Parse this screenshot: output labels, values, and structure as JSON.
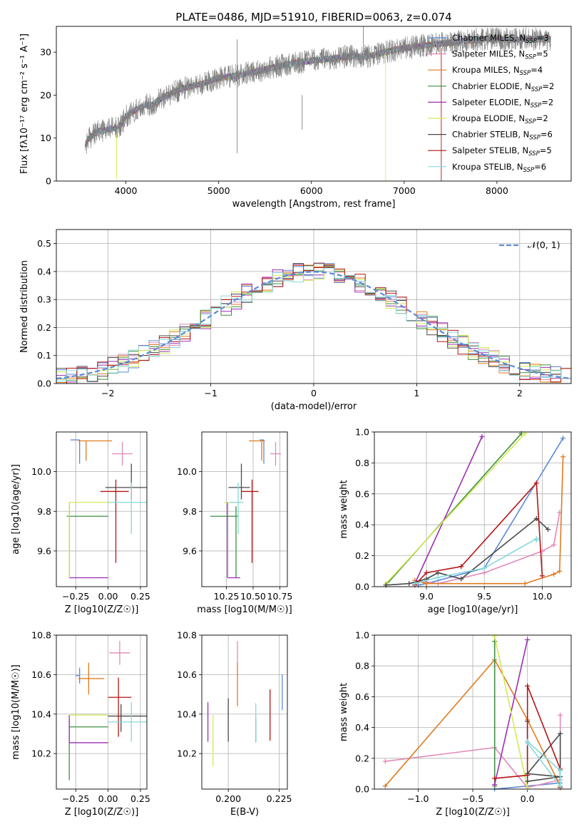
{
  "figure_title": "PLATE=0486, MJD=51910, FIBERID=0063, z=0.074",
  "colors": {
    "chabrier_miles": "#5b8ad7",
    "salpeter_miles": "#e389b9",
    "kroupa_miles": "#e07b20",
    "chabrier_elodie": "#3f8f3f",
    "salpeter_elodie": "#9a2fb0",
    "kroupa_elodie": "#d4ea55",
    "chabrier_stelib": "#4a4a4a",
    "salpeter_stelib": "#b51515",
    "kroupa_stelib": "#86d8da",
    "data_gray": "#7f7f7f"
  },
  "chart_data": [
    {
      "id": "spectrum",
      "type": "line",
      "title": "PLATE=0486, MJD=51910, FIBERID=0063, z=0.074",
      "xlabel": "wavelength [Angstrom, rest frame]",
      "ylabel": "Flux [fλ10⁻¹⁷ erg cm⁻² s⁻¹ A⁻¹]",
      "xlim": [
        3250,
        8800
      ],
      "ylim": [
        0,
        36
      ],
      "xticks": [
        "4000",
        "5000",
        "6000",
        "7000",
        "8000"
      ],
      "yticks": [
        "0",
        "10",
        "20",
        "30"
      ],
      "legend_position": "top-right",
      "legend": [
        "Chabrier MILES, N_SSP=3",
        "Salpeter MILES, N_SSP=5",
        "Kroupa MILES, N_SSP=4",
        "Chabrier ELODIE, N_SSP=2",
        "Salpeter ELODIE, N_SSP=2",
        "Kroupa ELODIE, N_SSP=2",
        "Chabrier STELIB, N_SSP=6",
        "Salpeter STELIB, N_SSP=5",
        "Kroupa STELIB, N_SSP=6"
      ],
      "continuum": [
        [
          3550,
          8
        ],
        [
          3600,
          10
        ],
        [
          3700,
          11.5
        ],
        [
          3800,
          12
        ],
        [
          3900,
          12.5
        ],
        [
          3950,
          13
        ],
        [
          4000,
          15
        ],
        [
          4100,
          16.5
        ],
        [
          4200,
          17.5
        ],
        [
          4300,
          18
        ],
        [
          4400,
          19.5
        ],
        [
          4500,
          20.5
        ],
        [
          4600,
          21.5
        ],
        [
          4800,
          22.5
        ],
        [
          5000,
          24
        ],
        [
          5200,
          24.5
        ],
        [
          5400,
          25.5
        ],
        [
          5600,
          26.5
        ],
        [
          5800,
          27.5
        ],
        [
          6000,
          28
        ],
        [
          6200,
          28.5
        ],
        [
          6400,
          29
        ],
        [
          6600,
          29
        ],
        [
          6800,
          30
        ],
        [
          7000,
          31
        ],
        [
          7200,
          31.5
        ],
        [
          7400,
          32
        ],
        [
          7600,
          32.5
        ],
        [
          7800,
          33
        ],
        [
          8000,
          33
        ],
        [
          8200,
          33
        ],
        [
          8400,
          33
        ],
        [
          8600,
          33
        ]
      ]
    },
    {
      "id": "residuals",
      "type": "line",
      "xlabel": "(data-model)/error",
      "ylabel": "Normed distribution",
      "xlim": [
        -2.5,
        2.5
      ],
      "ylim": [
        0,
        0.55
      ],
      "xticks": [
        "−2",
        "−1",
        "0",
        "1",
        "2"
      ],
      "yticks": [
        "0.0",
        "0.1",
        "0.2",
        "0.3",
        "0.4",
        "0.5"
      ],
      "legend_position": "top-right",
      "legend": [
        "𝒩(0, 1)"
      ],
      "bin_width": 0.1
    },
    {
      "id": "age_vs_Z",
      "type": "scatter",
      "xlabel": "Z [log10(Z/Z☉)]",
      "ylabel": "age  [log10(age/yr)]",
      "xlim": [
        -0.4,
        0.3
      ],
      "ylim": [
        9.42,
        10.2
      ],
      "xticks": [
        "−0.25",
        "0.00",
        "0.25"
      ],
      "yticks": [
        "9.6",
        "9.8",
        "10.0"
      ],
      "points": [
        {
          "x": -0.22,
          "xerr": [
            0.07,
            0
          ],
          "y": 10.16,
          "yerr": [
            0.12,
            0
          ],
          "c": "chabrier_miles"
        },
        {
          "x": 0.11,
          "xerr": [
            0.08,
            0.08
          ],
          "y": 10.09,
          "yerr": [
            0.06,
            0.06
          ],
          "c": "salpeter_miles"
        },
        {
          "x": -0.17,
          "xerr": [
            0.06,
            0.2
          ],
          "y": 10.155,
          "yerr": [
            0.1,
            0
          ],
          "c": "kroupa_miles"
        },
        {
          "x": -0.3,
          "xerr": [
            0.02,
            0.3
          ],
          "y": 9.775,
          "yerr": [
            0.31,
            0.05
          ],
          "c": "chabrier_elodie"
        },
        {
          "x": -0.3,
          "xerr": [
            0,
            0.3
          ],
          "y": 9.465,
          "yerr": [
            0,
            0.38
          ],
          "c": "salpeter_elodie"
        },
        {
          "x": -0.3,
          "xerr": [
            0,
            0.3
          ],
          "y": 9.845,
          "yerr": [
            0.38,
            0
          ],
          "c": "kroupa_elodie"
        },
        {
          "x": 0.18,
          "xerr": [
            0.2,
            0.12
          ],
          "y": 9.92,
          "yerr": [
            0.06,
            0.12
          ],
          "c": "chabrier_stelib"
        },
        {
          "x": 0.06,
          "xerr": [
            0.12,
            0.1
          ],
          "y": 9.9,
          "yerr": [
            0.36,
            0.06
          ],
          "c": "salpeter_stelib"
        },
        {
          "x": 0.18,
          "xerr": [
            0.18,
            0.12
          ],
          "y": 9.845,
          "yerr": [
            0.16,
            0.1
          ],
          "c": "kroupa_stelib"
        }
      ]
    },
    {
      "id": "age_vs_mass",
      "type": "scatter",
      "xlabel": "mass [log10(M/M☉)]",
      "ylabel": "",
      "xlim": [
        10.02,
        10.82
      ],
      "ylim": [
        9.42,
        10.2
      ],
      "xticks": [
        "10.25",
        "10.50",
        "10.75"
      ],
      "yticks": [
        "9.6",
        "9.8",
        "10.0"
      ],
      "points": [
        {
          "x": 10.6,
          "xerr": [
            0.04,
            0
          ],
          "y": 10.16,
          "yerr": [
            0.12,
            0
          ],
          "c": "chabrier_miles"
        },
        {
          "x": 10.71,
          "xerr": [
            0.05,
            0.05
          ],
          "y": 10.09,
          "yerr": [
            0.06,
            0.06
          ],
          "c": "salpeter_miles"
        },
        {
          "x": 10.58,
          "xerr": [
            0.12,
            0.03
          ],
          "y": 10.155,
          "yerr": [
            0.1,
            0
          ],
          "c": "kroupa_miles"
        },
        {
          "x": 10.34,
          "xerr": [
            0.24,
            0.02
          ],
          "y": 9.775,
          "yerr": [
            0.31,
            0.05
          ],
          "c": "chabrier_elodie"
        },
        {
          "x": 10.26,
          "xerr": [
            0,
            0.12
          ],
          "y": 9.465,
          "yerr": [
            0,
            0.38
          ],
          "c": "salpeter_elodie"
        },
        {
          "x": 10.39,
          "xerr": [
            0.16,
            0
          ],
          "y": 9.845,
          "yerr": [
            0,
            0
          ],
          "c": "kroupa_elodie"
        },
        {
          "x": 10.39,
          "xerr": [
            0.12,
            0.08
          ],
          "y": 9.92,
          "yerr": [
            0.06,
            0.12
          ],
          "c": "chabrier_stelib"
        },
        {
          "x": 10.49,
          "xerr": [
            0.1,
            0.06
          ],
          "y": 9.9,
          "yerr": [
            0.36,
            0.06
          ],
          "c": "salpeter_stelib"
        },
        {
          "x": 10.36,
          "xerr": [
            0.08,
            0.05
          ],
          "y": 9.845,
          "yerr": [
            0.16,
            0.1
          ],
          "c": "kroupa_stelib"
        }
      ]
    },
    {
      "id": "massweight_vs_age",
      "type": "line",
      "xlabel": "age  [log10(age/yr)]",
      "ylabel": "mass weight",
      "xlim": [
        8.55,
        10.25
      ],
      "ylim": [
        0,
        1
      ],
      "xticks": [
        "9.0",
        "9.5",
        "10.0"
      ],
      "yticks": [
        "0.0",
        "0.2",
        "0.4",
        "0.6",
        "0.8",
        "1.0"
      ],
      "series": [
        {
          "c": "chabrier_miles",
          "x": [
            8.93,
            9.0,
            9.5,
            10.18
          ],
          "y": [
            0.01,
            0.02,
            0.12,
            0.96
          ]
        },
        {
          "c": "salpeter_miles",
          "x": [
            8.9,
            9.1,
            9.5,
            10.0,
            10.1,
            10.15
          ],
          "y": [
            0.04,
            0.02,
            0.09,
            0.23,
            0.27,
            0.48
          ]
        },
        {
          "c": "kroupa_miles",
          "x": [
            8.9,
            9.0,
            9.85,
            10.1,
            10.15,
            10.18
          ],
          "y": [
            0.04,
            0.02,
            0.02,
            0.08,
            0.1,
            0.84
          ]
        },
        {
          "c": "chabrier_elodie",
          "x": [
            8.65,
            9.82
          ],
          "y": [
            0.01,
            0.99
          ]
        },
        {
          "c": "salpeter_elodie",
          "x": [
            8.9,
            9.48
          ],
          "y": [
            0.02,
            0.97
          ]
        },
        {
          "c": "kroupa_elodie",
          "x": [
            8.65,
            9.85
          ],
          "y": [
            0.02,
            0.99
          ]
        },
        {
          "c": "chabrier_stelib",
          "x": [
            8.65,
            8.85,
            9.0,
            9.1,
            9.3,
            9.95,
            10.05
          ],
          "y": [
            0.01,
            0.02,
            0.05,
            0.09,
            0.05,
            0.44,
            0.37
          ]
        },
        {
          "c": "salpeter_stelib",
          "x": [
            8.9,
            9.0,
            9.3,
            9.95,
            10.0
          ],
          "y": [
            0.01,
            0.09,
            0.13,
            0.67,
            0.07
          ]
        },
        {
          "c": "kroupa_stelib",
          "x": [
            8.9,
            9.1,
            9.5,
            9.95,
            9.95
          ],
          "y": [
            0.02,
            0.06,
            0.12,
            0.31,
            0.3
          ]
        }
      ]
    },
    {
      "id": "mass_vs_Z",
      "type": "scatter",
      "xlabel": "Z [log10(Z/Z☉)]",
      "ylabel": "mass [log10(M/M☉)]",
      "xlim": [
        -0.4,
        0.3
      ],
      "ylim": [
        10.02,
        10.8
      ],
      "xticks": [
        "−0.25",
        "0.00",
        "0.25"
      ],
      "yticks": [
        "10.2",
        "10.4",
        "10.6",
        "10.8"
      ],
      "points": [
        {
          "x": -0.22,
          "xerr": [
            0.03,
            0
          ],
          "y": 10.595,
          "yerr": [
            0.04,
            0.04
          ],
          "c": "chabrier_miles"
        },
        {
          "x": 0.09,
          "xerr": [
            0.08,
            0.08
          ],
          "y": 10.71,
          "yerr": [
            0.06,
            0.06
          ],
          "c": "salpeter_miles"
        },
        {
          "x": -0.15,
          "xerr": [
            0.08,
            0.12
          ],
          "y": 10.58,
          "yerr": [
            0.08,
            0.08
          ],
          "c": "kroupa_miles"
        },
        {
          "x": -0.3,
          "xerr": [
            0,
            0.3
          ],
          "y": 10.335,
          "yerr": [
            0.27,
            0.04
          ],
          "c": "chabrier_elodie"
        },
        {
          "x": -0.3,
          "xerr": [
            0,
            0.3
          ],
          "y": 10.255,
          "yerr": [
            0,
            0.14
          ],
          "c": "salpeter_elodie"
        },
        {
          "x": -0.3,
          "xerr": [
            0,
            0.3
          ],
          "y": 10.395,
          "yerr": [
            0,
            0
          ],
          "c": "kroupa_elodie"
        },
        {
          "x": 0.1,
          "xerr": [
            0.1,
            0.2
          ],
          "y": 10.39,
          "yerr": [
            0.08,
            0.06
          ],
          "c": "chabrier_stelib"
        },
        {
          "x": 0.08,
          "xerr": [
            0.08,
            0.1
          ],
          "y": 10.485,
          "yerr": [
            0.2,
            0.1
          ],
          "c": "salpeter_stelib"
        },
        {
          "x": 0.18,
          "xerr": [
            0.18,
            0.12
          ],
          "y": 10.36,
          "yerr": [
            0.1,
            0.1
          ],
          "c": "kroupa_stelib"
        }
      ]
    },
    {
      "id": "mass_vs_EBV",
      "type": "scatter",
      "xlabel": "E(B-V)",
      "ylabel": "",
      "xlim": [
        0.187,
        0.229
      ],
      "ylim": [
        10.02,
        10.8
      ],
      "xticks": [
        "0.200",
        "0.225"
      ],
      "yticks": [
        "10.2",
        "10.4",
        "10.6",
        "10.8"
      ],
      "points": [
        {
          "x": 0.2265,
          "y": 10.51,
          "yerr": [
            0.09,
            0.09
          ],
          "c": "chabrier_miles"
        },
        {
          "x": 0.2045,
          "y": 10.71,
          "yerr": [
            0.06,
            0.06
          ],
          "c": "salpeter_miles"
        },
        {
          "x": 0.2045,
          "y": 10.55,
          "yerr": [
            0.11,
            0.11
          ],
          "c": "kroupa_miles"
        },
        {
          "x": 0.2135,
          "y": 10.32,
          "yerr": [
            0.06,
            0.06
          ],
          "c": "chabrier_elodie"
        },
        {
          "x": 0.19,
          "y": 10.36,
          "yerr": [
            0.1,
            0.1
          ],
          "c": "salpeter_elodie"
        },
        {
          "x": 0.1925,
          "y": 10.265,
          "yerr": [
            0.13,
            0.13
          ],
          "c": "kroupa_elodie"
        },
        {
          "x": 0.2,
          "y": 10.37,
          "yerr": [
            0.11,
            0.11
          ],
          "c": "chabrier_stelib"
        },
        {
          "x": 0.2205,
          "y": 10.395,
          "yerr": [
            0.13,
            0.13
          ],
          "c": "salpeter_stelib"
        },
        {
          "x": 0.2135,
          "y": 10.355,
          "yerr": [
            0.1,
            0.1
          ],
          "c": "kroupa_stelib"
        }
      ]
    },
    {
      "id": "massweight_vs_Z",
      "type": "line",
      "xlabel": "Z [log10(Z/Z☉)]",
      "ylabel": "mass weight",
      "xlim": [
        -1.4,
        0.4
      ],
      "ylim": [
        0,
        1
      ],
      "xticks": [
        "−1.0",
        "−0.5",
        "0.0"
      ],
      "yticks": [
        "0.0",
        "0.2",
        "0.4",
        "0.6",
        "0.8",
        "1.0"
      ],
      "series": [
        {
          "c": "chabrier_miles",
          "x": [
            -0.3,
            0.3,
            0.3
          ],
          "y": [
            0.0,
            0.04,
            0.12
          ]
        },
        {
          "c": "salpeter_miles",
          "x": [
            -1.3,
            -0.3,
            0.0,
            0.3,
            0.3
          ],
          "y": [
            0.18,
            0.27,
            0.01,
            0.06,
            0.48
          ]
        },
        {
          "c": "kroupa_miles",
          "x": [
            -1.3,
            -0.3,
            0.0,
            0.3
          ],
          "y": [
            0.02,
            0.84,
            0.45,
            0.02
          ]
        },
        {
          "c": "chabrier_elodie",
          "x": [
            -0.3,
            -0.3
          ],
          "y": [
            0.02,
            0.96
          ]
        },
        {
          "c": "salpeter_elodie",
          "x": [
            -0.3,
            0.0
          ],
          "y": [
            0.03,
            0.97
          ]
        },
        {
          "c": "kroupa_elodie",
          "x": [
            -0.3,
            0.0
          ],
          "y": [
            0.99,
            0.01
          ]
        },
        {
          "c": "chabrier_stelib",
          "x": [
            0.0,
            0.0,
            0.3,
            0.0,
            0.3,
            0.3
          ],
          "y": [
            0.44,
            0.05,
            0.08,
            0.1,
            0.36,
            0.02
          ]
        },
        {
          "c": "salpeter_stelib",
          "x": [
            -0.3,
            0.0,
            0.0,
            0.3,
            0.3
          ],
          "y": [
            0.07,
            0.09,
            0.67,
            0.13,
            0.01
          ]
        },
        {
          "c": "kroupa_stelib",
          "x": [
            0.0,
            0.3,
            0.3,
            0.0
          ],
          "y": [
            0.31,
            0.12,
            0.02,
            0.3
          ]
        }
      ]
    }
  ]
}
